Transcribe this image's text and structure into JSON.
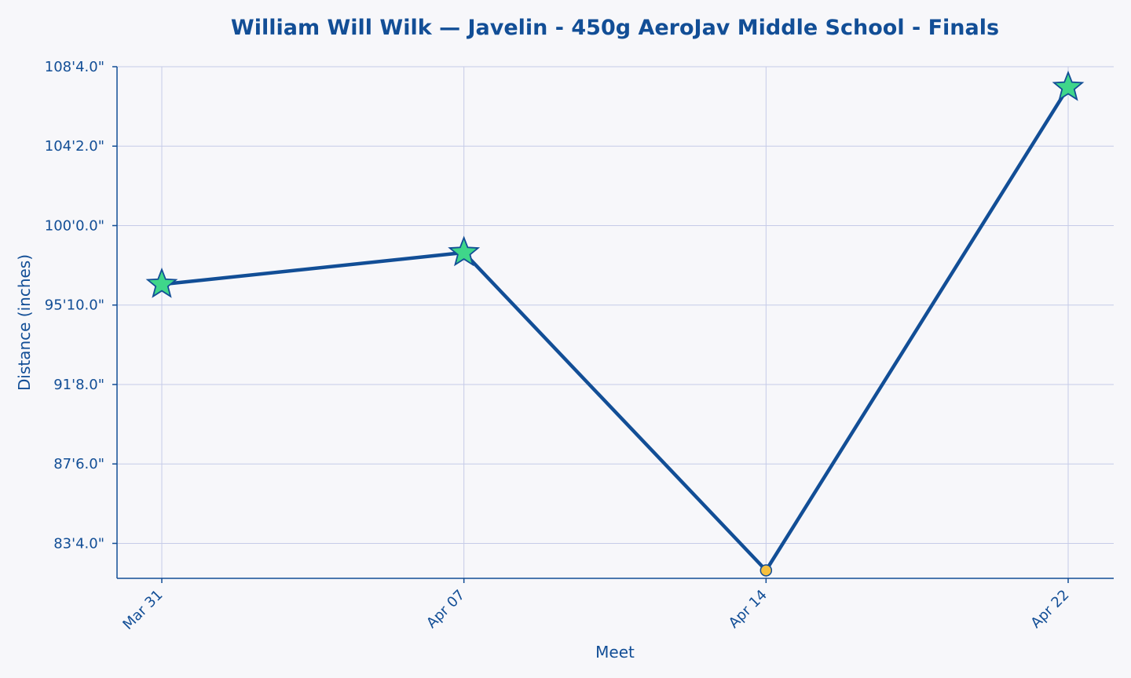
{
  "chart_data": {
    "type": "line",
    "title": "William Will Wilk — Javelin - 450g AeroJav Middle School - Finals",
    "xlabel": "Meet",
    "ylabel": "Distance (inches)",
    "categories": [
      "Mar 31",
      "Apr 07",
      "Apr 14",
      "Apr 22"
    ],
    "y_unit": "inches",
    "ylim": [
      978,
      1300
    ],
    "y_ticks": [
      1000,
      1050,
      1100,
      1150,
      1200,
      1250,
      1300
    ],
    "y_tick_labels": [
      "83'4.0\"",
      "87'6.0\"",
      "91'8.0\"",
      "95'10.0\"",
      "100'0.0\"",
      "104'2.0\"",
      "108'4.0\""
    ],
    "grid": true,
    "series": [
      {
        "values": [
          1163,
          1183,
          983,
          1287
        ],
        "markers": [
          "star",
          "star",
          "circle",
          "star"
        ]
      }
    ],
    "colors": {
      "line": "#124e96",
      "star_fill": "#3fd68a",
      "star_edge": "#124e96",
      "circle_fill": "#f6c03f",
      "grid": "#c6cbe8",
      "background": "#f7f7fa",
      "text": "#124e96"
    }
  }
}
